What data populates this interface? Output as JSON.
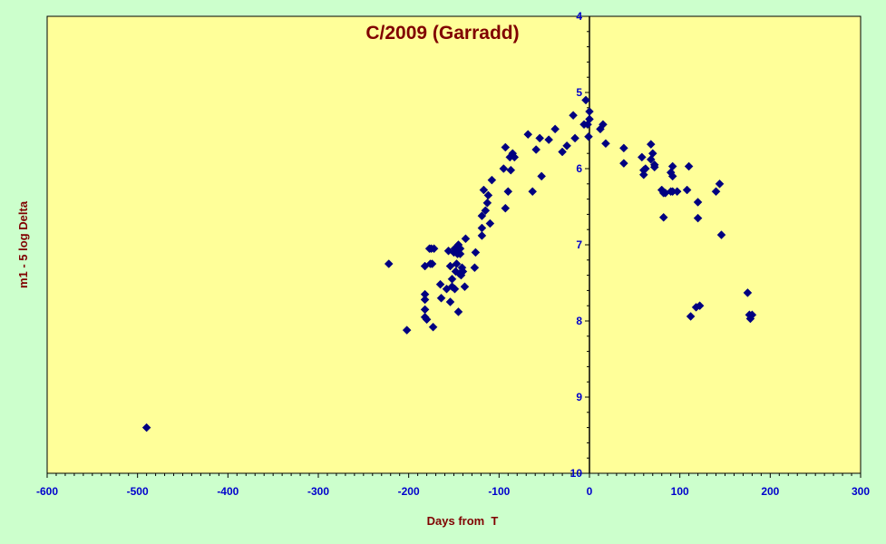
{
  "colors": {
    "page_background": "#ccffcc",
    "plot_background": "#ffff99",
    "marker": "#000080",
    "title": "#800000",
    "axis_label": "#800000",
    "tick_label": "#0000cc"
  },
  "chart_data": {
    "type": "scatter",
    "title": "C/2009 (Garradd)",
    "xlabel": "Days from  T",
    "ylabel": "m1 - 5 log Delta",
    "xlim": [
      -600,
      300
    ],
    "ylim": [
      4,
      10
    ],
    "y_inverted": true,
    "grid": false,
    "legend": "none",
    "marker": "diamond",
    "x_ticks": [
      -600,
      -500,
      -400,
      -300,
      -200,
      -100,
      0,
      100,
      200,
      300
    ],
    "y_ticks": [
      4,
      5,
      6,
      7,
      8,
      9,
      10
    ],
    "x": [
      -490,
      -222,
      -202,
      -182,
      -182,
      -182,
      -182,
      -182,
      -180,
      -177,
      -176,
      -175,
      -174,
      -173,
      -172,
      -165,
      -164,
      -158,
      -156,
      -154,
      -154,
      -152,
      -152,
      -150,
      -149,
      -149,
      -148,
      -147,
      -147,
      -146,
      -145,
      -145,
      -144,
      -143,
      -143,
      -142,
      -141,
      -140,
      -138,
      -137,
      -127,
      -126,
      -119,
      -119,
      -119,
      -117,
      -115,
      -113,
      -112,
      -110,
      -108,
      -95,
      -93,
      -93,
      -90,
      -88,
      -87,
      -85,
      -83,
      -68,
      -63,
      -59,
      -55,
      -53,
      -45,
      -38,
      -30,
      -25,
      -18,
      -16,
      -6,
      -4,
      -2,
      -1,
      0,
      0,
      12,
      15,
      18,
      38,
      38,
      58,
      60,
      60,
      62,
      68,
      68,
      70,
      72,
      72,
      80,
      82,
      82,
      84,
      90,
      90,
      92,
      92,
      92,
      97,
      108,
      110,
      112,
      118,
      120,
      120,
      122,
      140,
      144,
      146,
      175,
      177,
      178,
      180
    ],
    "y": [
      9.4,
      7.25,
      8.12,
      7.28,
      7.65,
      7.72,
      7.85,
      7.95,
      7.98,
      7.05,
      7.25,
      7.05,
      7.25,
      8.08,
      7.05,
      7.52,
      7.7,
      7.58,
      7.08,
      7.28,
      7.75,
      7.45,
      7.55,
      7.1,
      7.05,
      7.58,
      7.35,
      7.1,
      7.25,
      7.12,
      7.88,
      7.0,
      7.38,
      7.05,
      7.12,
      7.4,
      7.3,
      7.35,
      7.55,
      6.92,
      7.3,
      7.1,
      6.62,
      6.78,
      6.88,
      6.28,
      6.55,
      6.45,
      6.35,
      6.72,
      6.15,
      6.0,
      5.72,
      6.52,
      6.3,
      5.85,
      6.02,
      5.8,
      5.85,
      5.55,
      6.3,
      5.75,
      5.6,
      6.1,
      5.62,
      5.48,
      5.78,
      5.7,
      5.3,
      5.6,
      5.42,
      5.1,
      5.42,
      5.58,
      5.35,
      5.25,
      5.48,
      5.42,
      5.67,
      5.73,
      5.93,
      5.85,
      6.02,
      6.08,
      6.0,
      5.88,
      5.68,
      5.8,
      5.98,
      5.95,
      6.28,
      6.32,
      6.64,
      6.32,
      6.3,
      6.05,
      6.1,
      5.97,
      6.3,
      6.3,
      6.28,
      5.97,
      7.94,
      7.82,
      6.44,
      6.65,
      7.8,
      6.3,
      6.2,
      6.87,
      7.63,
      7.92,
      7.97,
      7.92
    ]
  }
}
